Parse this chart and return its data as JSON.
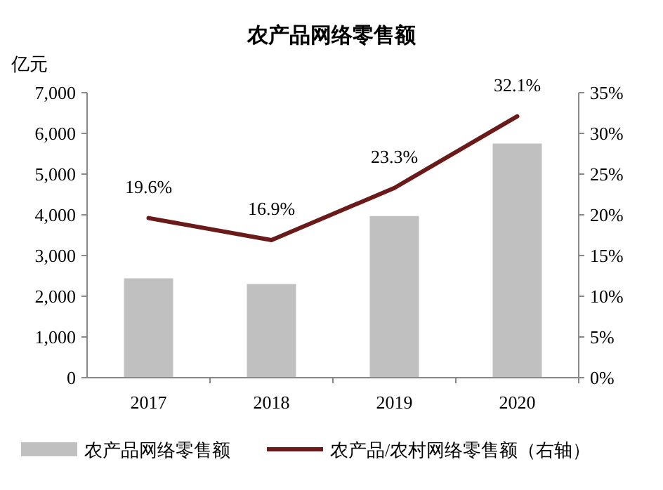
{
  "chart_data": {
    "type": "bar",
    "title": "农产品网络零售额",
    "ylabel": "亿元",
    "categories": [
      "2017",
      "2018",
      "2019",
      "2020"
    ],
    "series": [
      {
        "name": "农产品网络零售额",
        "color": "#c0c0c0",
        "values": [
          2440,
          2300,
          3970,
          5750
        ]
      },
      {
        "name": "农产品/农村网络零售额（右轴）",
        "type": "line",
        "axis": "y2",
        "color": "#6b1a1a",
        "values": [
          19.6,
          16.9,
          23.3,
          32.1
        ],
        "value_labels": [
          "19.6%",
          "16.9%",
          "23.3%",
          "32.1%"
        ]
      }
    ],
    "ylim": [
      0,
      7000
    ],
    "yticks": [
      {
        "value": 0,
        "label": "0"
      },
      {
        "value": 1000,
        "label": "1,000"
      },
      {
        "value": 2000,
        "label": "2,000"
      },
      {
        "value": 3000,
        "label": "3,000"
      },
      {
        "value": 4000,
        "label": "4,000"
      },
      {
        "value": 5000,
        "label": "5,000"
      },
      {
        "value": 6000,
        "label": "6,000"
      },
      {
        "value": 7000,
        "label": "7,000"
      }
    ],
    "y2lim": [
      0,
      35
    ],
    "y2ticks": [
      {
        "value": 0,
        "label": "0%"
      },
      {
        "value": 5,
        "label": "5%"
      },
      {
        "value": 10,
        "label": "10%"
      },
      {
        "value": 15,
        "label": "15%"
      },
      {
        "value": 20,
        "label": "20%"
      },
      {
        "value": 25,
        "label": "25%"
      },
      {
        "value": 30,
        "label": "30%"
      },
      {
        "value": 35,
        "label": "35%"
      }
    ],
    "legend": "bottom",
    "grid": false
  }
}
